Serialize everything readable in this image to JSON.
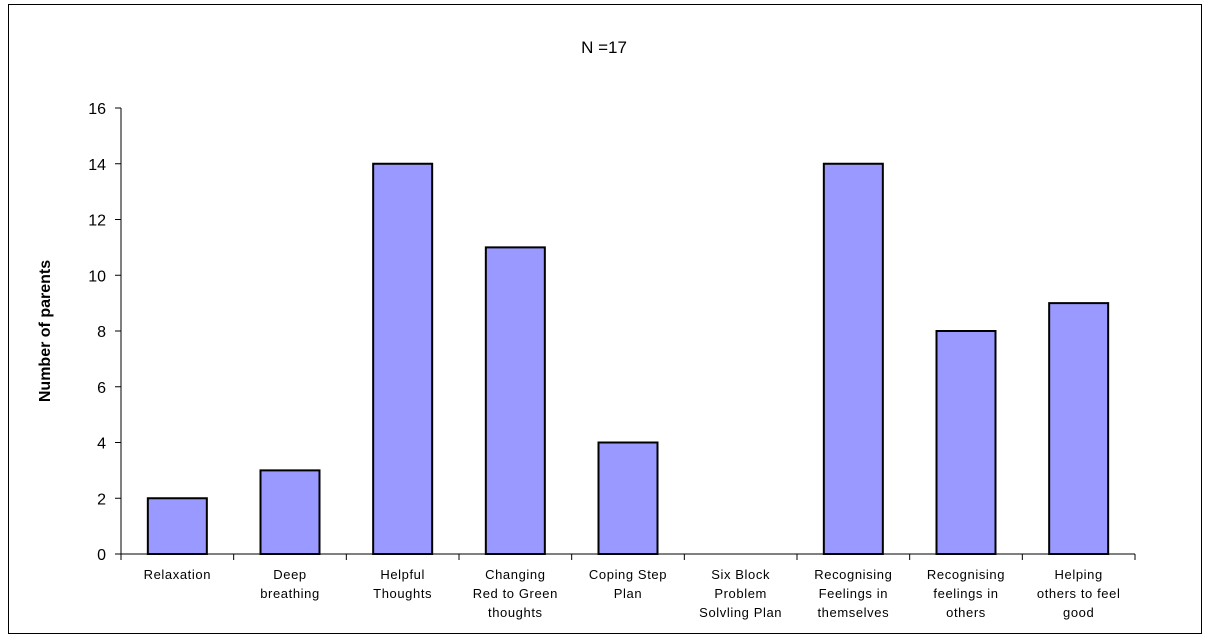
{
  "chart_data": {
    "type": "bar",
    "title": "N =17",
    "xlabel": "",
    "ylabel": "Number of parents",
    "ylim": [
      0,
      16
    ],
    "yticks": [
      0,
      2,
      4,
      6,
      8,
      10,
      12,
      14,
      16
    ],
    "grid": false,
    "legend": "none",
    "bar_color": "#9999ff",
    "bar_stroke": "#000000",
    "categories": [
      [
        "Relaxation"
      ],
      [
        "Deep",
        "breathing"
      ],
      [
        "Helpful",
        "Thoughts"
      ],
      [
        "Changing",
        "Red to Green",
        "thoughts"
      ],
      [
        "Coping Step",
        "Plan"
      ],
      [
        "Six Block",
        "Problem",
        "Solvling Plan"
      ],
      [
        "Recognising",
        "Feelings in",
        "themselves"
      ],
      [
        "Recognising",
        "feelings in",
        "others"
      ],
      [
        "Helping",
        "others to feel",
        "good"
      ]
    ],
    "values": [
      2,
      3,
      14,
      11,
      4,
      0,
      14,
      8,
      9
    ]
  }
}
